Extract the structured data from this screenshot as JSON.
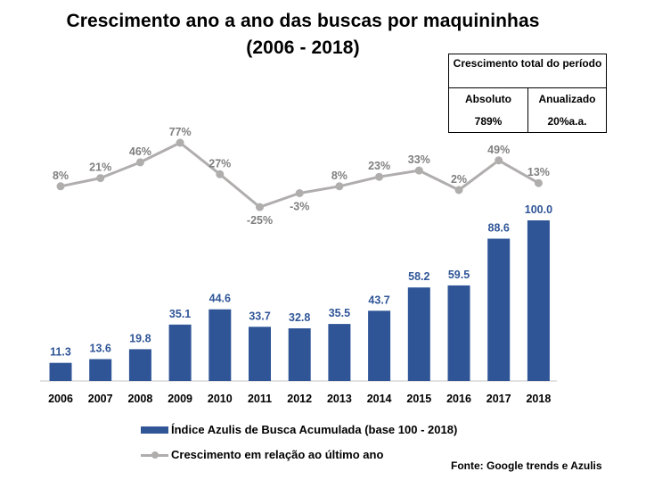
{
  "colors": {
    "bar": "#2f5597",
    "bar_label": "#2f5597",
    "line": "#b0adad",
    "line_label": "#7f7f7f",
    "axis": "#d9d9d9",
    "text": "#000000"
  },
  "title": {
    "line1": "Crescimento ano a ano das buscas por maquininhas",
    "line2": "(2006 - 2018)"
  },
  "summary_table": {
    "header": "Crescimento total do período",
    "columns": [
      {
        "label": "Absoluto",
        "value": "789%"
      },
      {
        "label": "Anualizado",
        "value": "20%a.a."
      }
    ]
  },
  "legend": {
    "bar_label": "Índice Azulis de Busca Acumulada (base 100 - 2018)",
    "line_label": "Crescimento em relação ao último ano"
  },
  "source": "Fonte: Google trends e Azulis",
  "chart_data": {
    "type": "bar",
    "title": "Crescimento ano a ano das buscas por maquininhas (2006 - 2018)",
    "xlabel": "",
    "ylabel": "",
    "categories": [
      "2006",
      "2007",
      "2008",
      "2009",
      "2010",
      "2011",
      "2012",
      "2013",
      "2014",
      "2015",
      "2016",
      "2017",
      "2018"
    ],
    "series": [
      {
        "name": "Índice Azulis de Busca Acumulada (base 100 - 2018)",
        "type": "bar",
        "values": [
          11.3,
          13.6,
          19.8,
          35.1,
          44.6,
          33.7,
          32.8,
          35.5,
          43.7,
          58.2,
          59.5,
          88.6,
          100.0
        ],
        "labels": [
          "11.3",
          "13.6",
          "19.8",
          "35.1",
          "44.6",
          "33.7",
          "32.8",
          "35.5",
          "43.7",
          "58.2",
          "59.5",
          "88.6",
          "100.0"
        ]
      },
      {
        "name": "Crescimento em relação ao último ano",
        "type": "line",
        "axis": "secondary",
        "values": [
          8,
          21,
          46,
          77,
          27,
          -25,
          -3,
          8,
          23,
          33,
          2,
          49,
          13
        ],
        "labels": [
          "8%",
          "21%",
          "46%",
          "77%",
          "27%",
          "-25%",
          "-3%",
          "8%",
          "23%",
          "33%",
          "2%",
          "49%",
          "13%"
        ],
        "label_positions": [
          "above",
          "above",
          "above",
          "above",
          "above",
          "below",
          "below",
          "above",
          "above",
          "above",
          "above",
          "above",
          "above"
        ]
      }
    ],
    "ylim": [
      0,
      100
    ],
    "y2lim_unit": "%",
    "grid": false,
    "legend_position": "bottom-left"
  }
}
